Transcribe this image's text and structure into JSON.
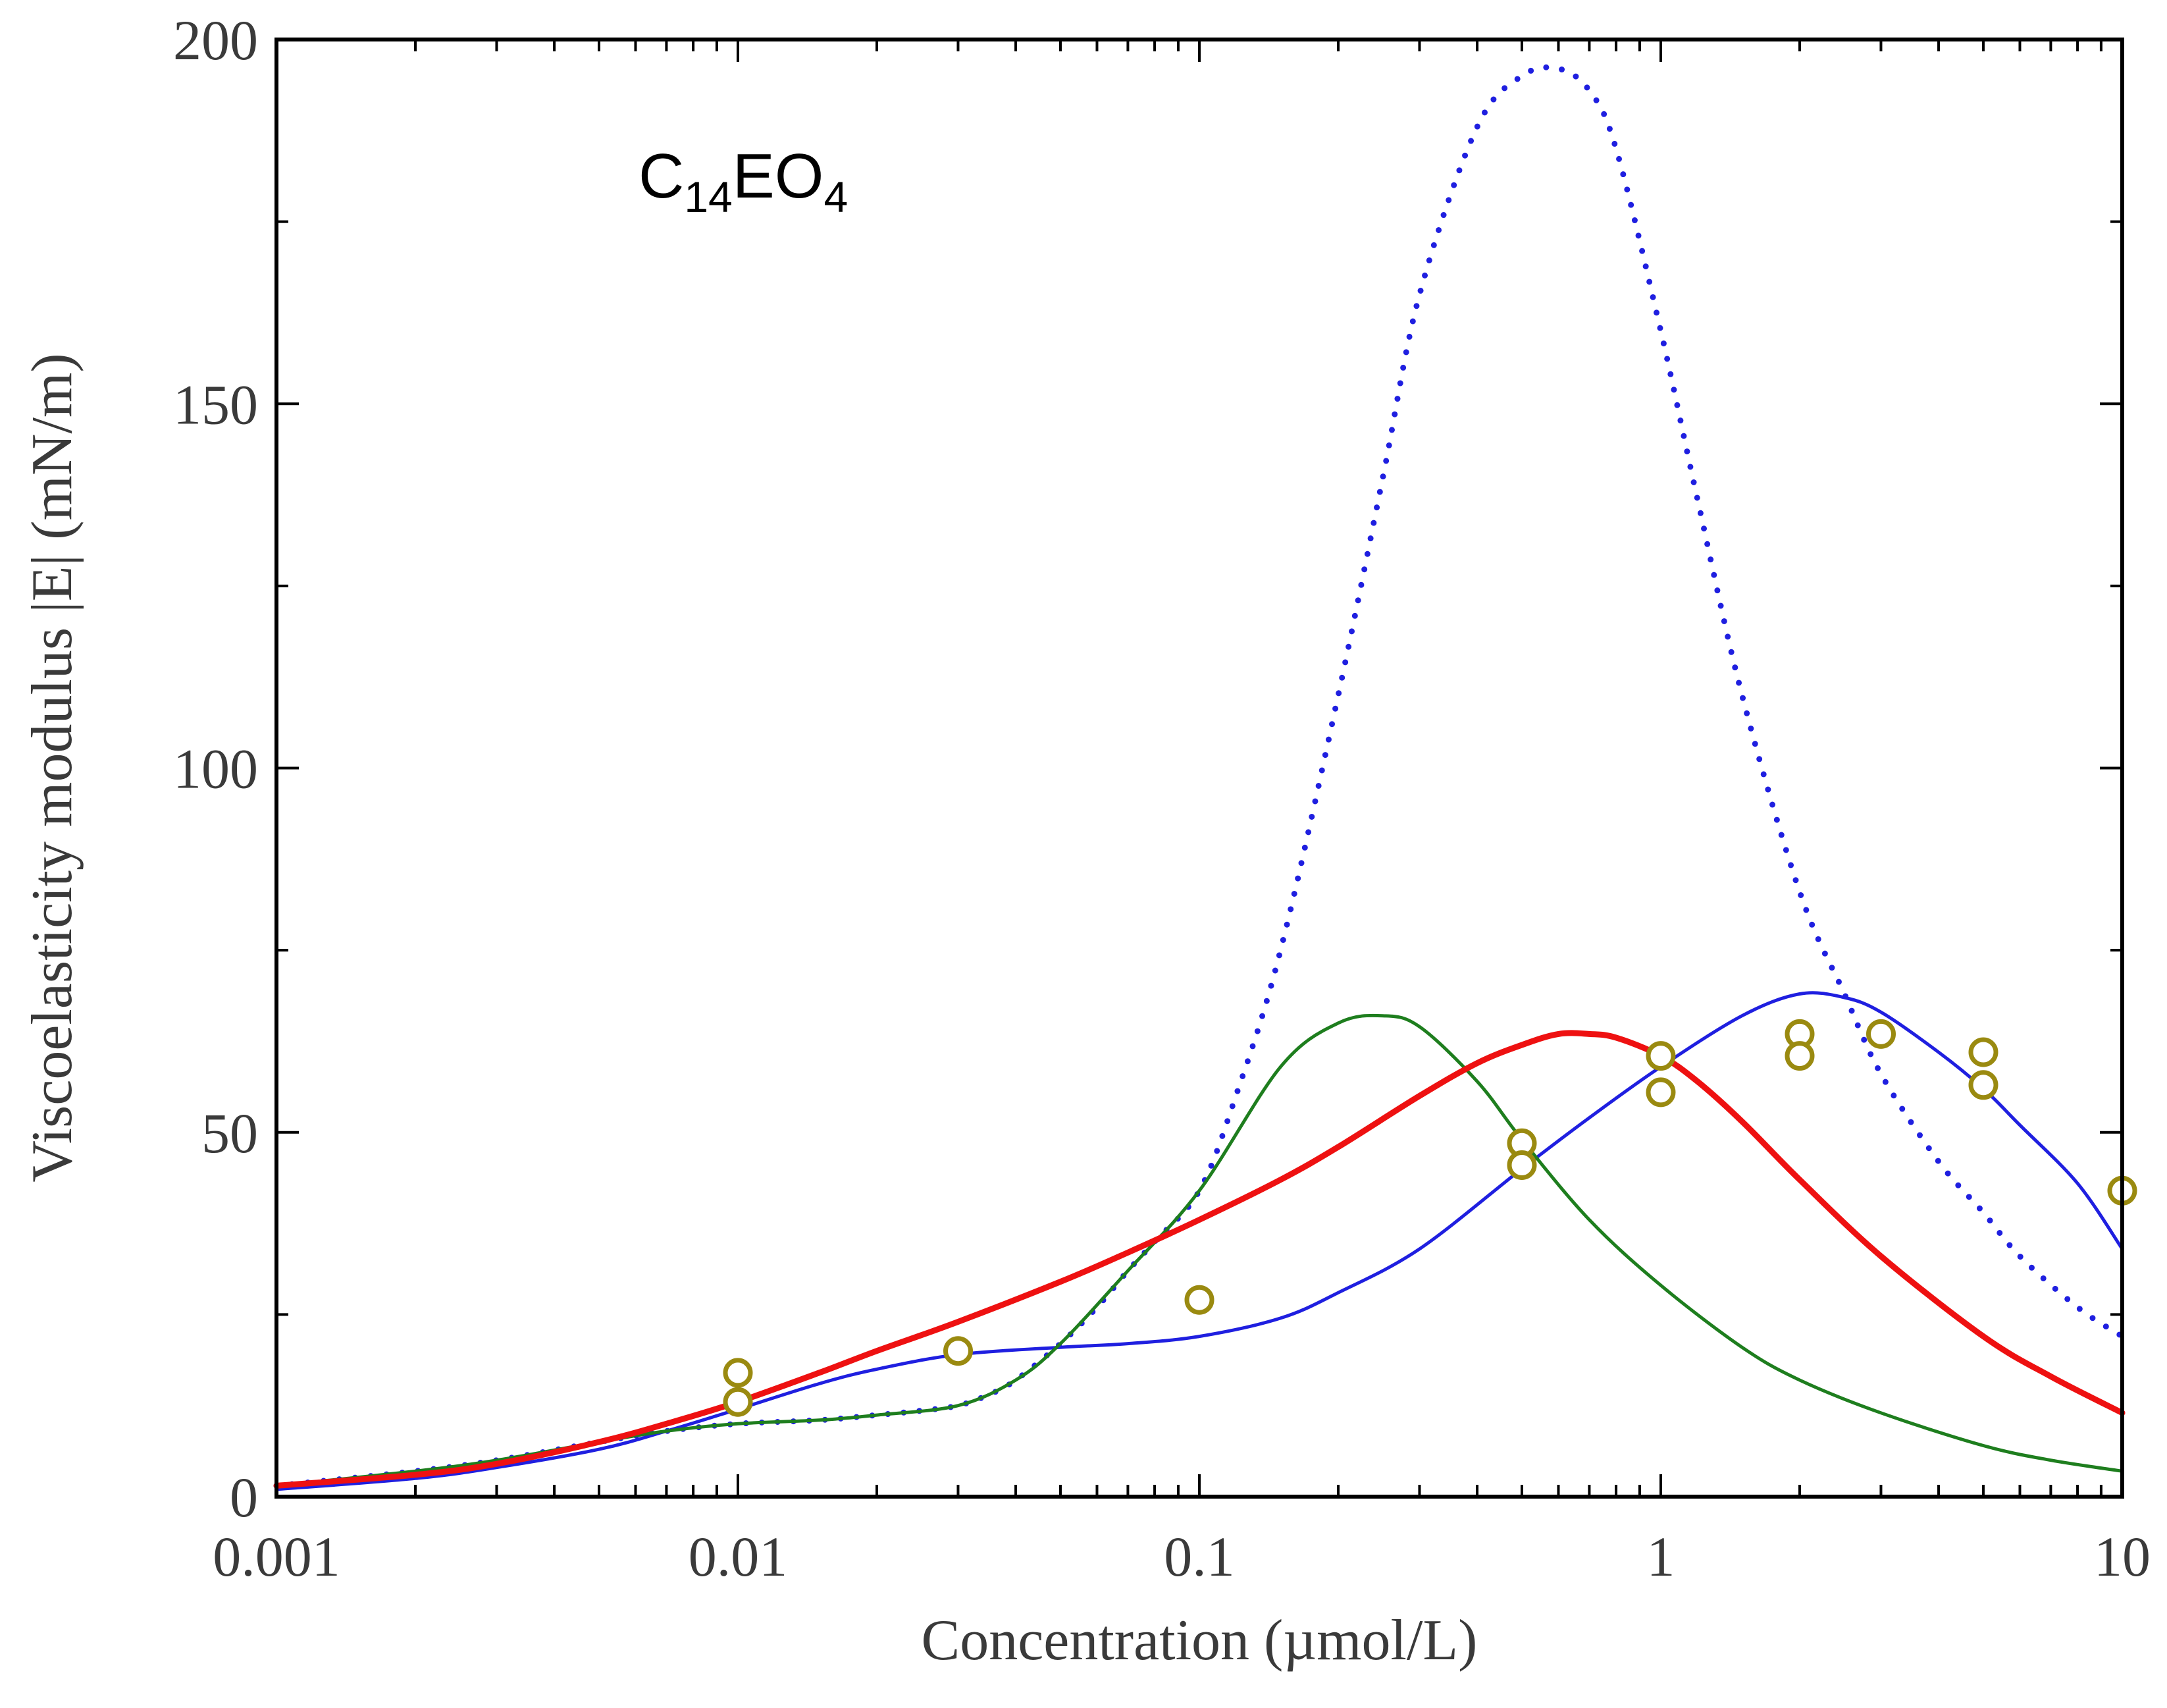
{
  "chart_data": {
    "type": "line",
    "title": "",
    "annotation": {
      "base": "C",
      "sub1": "14",
      "mid": "EO",
      "sub2": "4"
    },
    "xlabel": "Concentration (µmol/L)",
    "ylabel": "Viscoelasticity modulus |E| (mN/m)",
    "xscale": "log",
    "xlim": [
      0.001,
      10
    ],
    "ylim": [
      0,
      200
    ],
    "x_ticks": [
      {
        "value": 0.001,
        "label": "0.001"
      },
      {
        "value": 0.01,
        "label": "0.01"
      },
      {
        "value": 0.1,
        "label": "0.1"
      },
      {
        "value": 1,
        "label": "1"
      },
      {
        "value": 10,
        "label": "10"
      }
    ],
    "y_ticks": [
      {
        "value": 0,
        "label": "0"
      },
      {
        "value": 50,
        "label": "50"
      },
      {
        "value": 100,
        "label": "100"
      },
      {
        "value": 150,
        "label": "150"
      },
      {
        "value": 200,
        "label": "200"
      }
    ],
    "series": [
      {
        "name": "blue-dotted",
        "color": "#1f1fe0",
        "style": "dotted",
        "x": [
          0.001,
          0.002,
          0.003,
          0.005,
          0.007,
          0.01,
          0.015,
          0.02,
          0.025,
          0.03,
          0.035,
          0.04,
          0.05,
          0.06,
          0.07,
          0.08,
          0.1,
          0.12,
          0.15,
          0.2,
          0.25,
          0.3,
          0.4,
          0.5,
          0.6,
          0.7,
          0.8,
          1,
          1.2,
          1.5,
          2,
          2.5,
          3,
          4,
          5,
          6,
          8,
          10
        ],
        "y": [
          1.5,
          3.5,
          5,
          7.5,
          9,
          10,
          10.5,
          11.2,
          11.8,
          12.5,
          14,
          16,
          21,
          26,
          31,
          35,
          42,
          55,
          75,
          110,
          140,
          165,
          188,
          195,
          196,
          193,
          185,
          160,
          137,
          110,
          83,
          69,
          58,
          46,
          39,
          33,
          26,
          22
        ]
      },
      {
        "name": "blue-solid",
        "color": "#1f1fe0",
        "style": "solid",
        "x": [
          0.001,
          0.002,
          0.003,
          0.005,
          0.007,
          0.01,
          0.015,
          0.02,
          0.03,
          0.05,
          0.07,
          0.1,
          0.15,
          0.2,
          0.3,
          0.5,
          0.7,
          1,
          1.5,
          2,
          2.5,
          3,
          4,
          5,
          6,
          8,
          10
        ],
        "y": [
          1,
          2.5,
          4,
          6.5,
          9,
          12,
          15.5,
          17.5,
          19.5,
          20.5,
          21,
          22,
          24.5,
          28,
          34,
          45,
          52,
          59,
          66,
          69,
          68.5,
          66.5,
          61,
          56,
          51,
          43,
          34
        ]
      },
      {
        "name": "green",
        "color": "#1e7e1e",
        "style": "solid",
        "x": [
          0.001,
          0.002,
          0.003,
          0.005,
          0.007,
          0.01,
          0.015,
          0.02,
          0.03,
          0.04,
          0.05,
          0.07,
          0.1,
          0.15,
          0.2,
          0.25,
          0.3,
          0.4,
          0.5,
          0.7,
          1,
          1.5,
          2,
          3,
          5,
          7,
          10
        ],
        "y": [
          1.5,
          3.5,
          5,
          7.5,
          9,
          10,
          10.5,
          11.2,
          12.5,
          16,
          21,
          31,
          42,
          59,
          65,
          66,
          64.5,
          57,
          49,
          38,
          29,
          20.5,
          16,
          11.5,
          7,
          5,
          3.5
        ]
      },
      {
        "name": "red",
        "color": "#ee1111",
        "style": "solid",
        "x": [
          0.001,
          0.002,
          0.003,
          0.005,
          0.007,
          0.01,
          0.015,
          0.02,
          0.03,
          0.05,
          0.07,
          0.1,
          0.15,
          0.2,
          0.3,
          0.4,
          0.5,
          0.6,
          0.7,
          0.8,
          1,
          1.2,
          1.5,
          2,
          3,
          5,
          7,
          10
        ],
        "y": [
          1.5,
          3,
          4.5,
          7.5,
          10,
          13,
          17,
          20,
          24,
          29.5,
          33.5,
          38,
          43.5,
          48,
          55,
          59.5,
          62,
          63.5,
          63.5,
          63,
          60.5,
          57,
          51.5,
          43.5,
          33,
          22,
          16.5,
          11.5
        ]
      }
    ],
    "scatter": {
      "name": "experimental",
      "color": "#9a8a10",
      "x": [
        0.01,
        0.01,
        0.03,
        0.1,
        0.5,
        0.5,
        1,
        1,
        2,
        2,
        3,
        5,
        5,
        10
      ],
      "y": [
        17,
        13,
        20,
        27,
        48.5,
        45.5,
        60.5,
        55.5,
        63.5,
        60.5,
        63.5,
        61,
        56.5,
        42
      ]
    }
  }
}
